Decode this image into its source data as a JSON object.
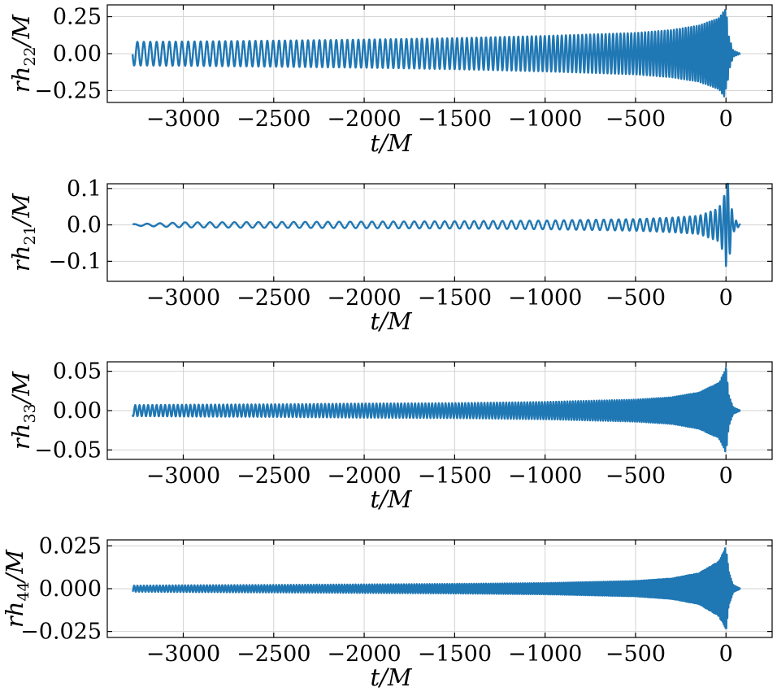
{
  "colors": {
    "line": "#1f77b4",
    "grid": "#d3d3d3"
  },
  "chart_data": [
    {
      "type": "line",
      "ylabel_main": "rh",
      "ylabel_sub": "22",
      "ylabel_tail": "/M",
      "xlabel": "t/M",
      "xlim": [
        -3420,
        255
      ],
      "ylim": [
        -0.33,
        0.33
      ],
      "xticks": [
        -3000,
        -2500,
        -2000,
        -1500,
        -1000,
        -500,
        0
      ],
      "xtick_labels": [
        "−3000",
        "−2500",
        "−2000",
        "−1500",
        "−1000",
        "−500",
        "0"
      ],
      "yticks": [
        -0.25,
        0,
        0.25
      ],
      "ytick_labels": [
        "−0.25",
        "0.00",
        "0.25"
      ],
      "grid": true,
      "series": [
        {
          "x": [
            -3280,
            -3000,
            -2500,
            -2000,
            -1500,
            -1000,
            -500,
            -300,
            -150,
            -40,
            -10,
            0,
            15,
            40,
            80
          ],
          "y": [
            0.08,
            0.082,
            0.088,
            0.095,
            0.105,
            0.12,
            0.14,
            0.16,
            0.19,
            0.24,
            0.29,
            0.3,
            0.12,
            0.02,
            0.0
          ]
        }
      ]
    },
    {
      "type": "line",
      "ylabel_main": "rh",
      "ylabel_sub": "21",
      "ylabel_tail": "/M",
      "xlabel": "t/M",
      "xlim": [
        -3420,
        255
      ],
      "ylim": [
        -0.155,
        0.113
      ],
      "xticks": [
        -3000,
        -2500,
        -2000,
        -1500,
        -1000,
        -500,
        0
      ],
      "xtick_labels": [
        "−3000",
        "−2500",
        "−2000",
        "−1500",
        "−1000",
        "−500",
        "0"
      ],
      "yticks": [
        -0.1,
        0,
        0.1
      ],
      "ytick_labels": [
        "−0.1",
        "0.0",
        "0.1"
      ],
      "grid": true,
      "series": [
        {
          "x": [
            -3280,
            -3000,
            -2500,
            -2000,
            -1500,
            -1000,
            -500,
            -300,
            -150,
            -40,
            -10,
            5,
            15,
            40,
            80
          ],
          "y": [
            0.002,
            0.007,
            0.008,
            0.009,
            0.01,
            0.012,
            0.016,
            0.02,
            0.025,
            0.045,
            0.08,
            0.14,
            0.1,
            0.02,
            0.0
          ]
        }
      ]
    },
    {
      "type": "line",
      "ylabel_main": "rh",
      "ylabel_sub": "33",
      "ylabel_tail": "/M",
      "xlabel": "t/M",
      "xlim": [
        -3420,
        255
      ],
      "ylim": [
        -0.062,
        0.062
      ],
      "xticks": [
        -3000,
        -2500,
        -2000,
        -1500,
        -1000,
        -500,
        0
      ],
      "xtick_labels": [
        "−3000",
        "−2500",
        "−2000",
        "−1500",
        "−1000",
        "−500",
        "0"
      ],
      "yticks": [
        -0.05,
        0,
        0.05
      ],
      "ytick_labels": [
        "−0.05",
        "0.00",
        "0.05"
      ],
      "grid": true,
      "series": [
        {
          "x": [
            -3280,
            -3000,
            -2500,
            -2000,
            -1500,
            -1000,
            -500,
            -300,
            -150,
            -40,
            -10,
            0,
            15,
            40,
            80
          ],
          "y": [
            0.007,
            0.0075,
            0.008,
            0.009,
            0.0095,
            0.011,
            0.014,
            0.017,
            0.023,
            0.035,
            0.048,
            0.055,
            0.02,
            0.004,
            0.0
          ]
        }
      ]
    },
    {
      "type": "line",
      "ylabel_main": "rh",
      "ylabel_sub": "44",
      "ylabel_tail": "/M",
      "xlabel": "t/M",
      "xlim": [
        -3420,
        255
      ],
      "ylim": [
        -0.0285,
        0.0285
      ],
      "xticks": [
        -3000,
        -2500,
        -2000,
        -1500,
        -1000,
        -500,
        0
      ],
      "xtick_labels": [
        "−3000",
        "−2500",
        "−2000",
        "−1500",
        "−1000",
        "−500",
        "0"
      ],
      "yticks": [
        -0.025,
        0,
        0.025
      ],
      "ytick_labels": [
        "−0.025",
        "0.000",
        "0.025"
      ],
      "grid": true,
      "series": [
        {
          "x": [
            -3280,
            -3000,
            -2500,
            -2000,
            -1500,
            -1000,
            -500,
            -300,
            -150,
            -40,
            -10,
            0,
            15,
            40,
            80
          ],
          "y": [
            0.0018,
            0.002,
            0.0022,
            0.0025,
            0.0028,
            0.0033,
            0.0045,
            0.006,
            0.009,
            0.016,
            0.022,
            0.025,
            0.01,
            0.002,
            0.0
          ]
        }
      ]
    }
  ]
}
